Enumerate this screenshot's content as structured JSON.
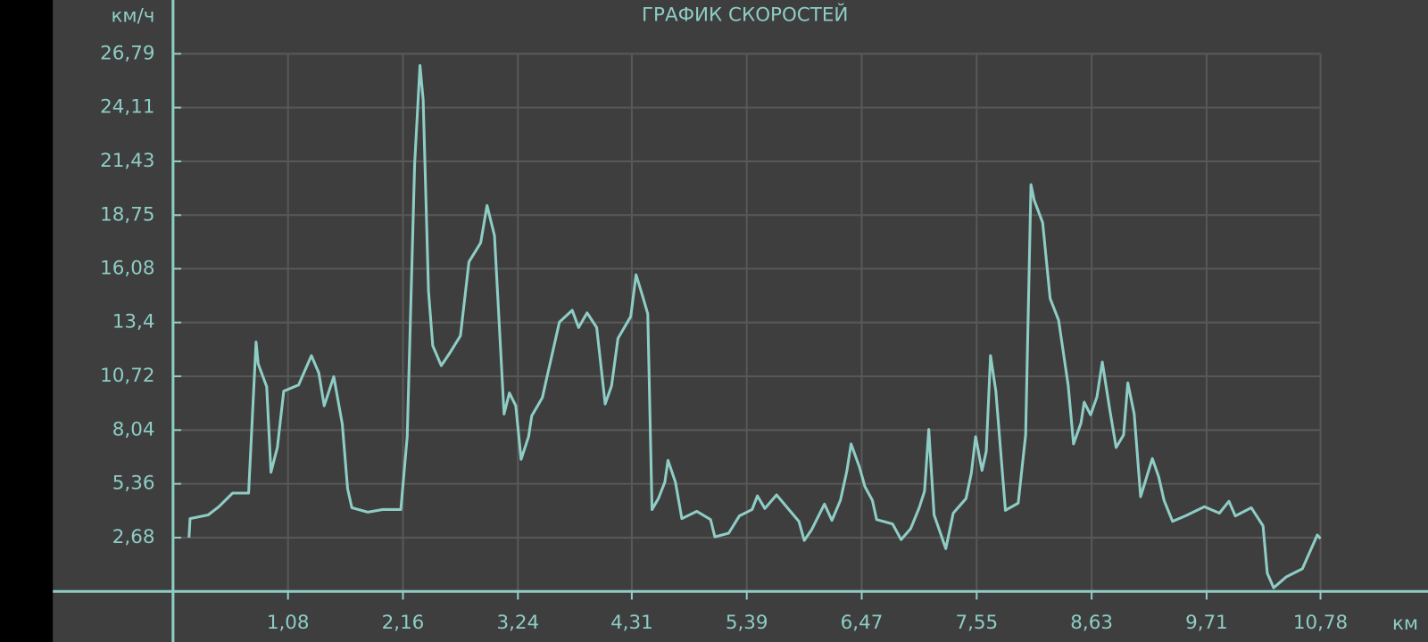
{
  "chart_data": {
    "type": "line",
    "title": "ГРАФИК СКОРОСТЕЙ",
    "y_label": "км/ч",
    "x_label": "км",
    "grid": true,
    "xlim": [
      0,
      11.79
    ],
    "ylim": [
      0,
      29.47
    ],
    "xticks": [
      {
        "value": 1.08,
        "label": "1,08"
      },
      {
        "value": 2.16,
        "label": "2,16"
      },
      {
        "value": 3.24,
        "label": "3,24"
      },
      {
        "value": 4.31,
        "label": "4,31"
      },
      {
        "value": 5.39,
        "label": "5,39"
      },
      {
        "value": 6.47,
        "label": "6,47"
      },
      {
        "value": 7.55,
        "label": "7,55"
      },
      {
        "value": 8.63,
        "label": "8,63"
      },
      {
        "value": 9.71,
        "label": "9,71"
      },
      {
        "value": 10.78,
        "label": "10,78"
      }
    ],
    "yticks": [
      {
        "value": 2.68,
        "label": "2,68"
      },
      {
        "value": 5.36,
        "label": "5,36"
      },
      {
        "value": 8.04,
        "label": "8,04"
      },
      {
        "value": 10.72,
        "label": "10,72"
      },
      {
        "value": 13.4,
        "label": "13,4"
      },
      {
        "value": 16.08,
        "label": "16,08"
      },
      {
        "value": 18.75,
        "label": "18,75"
      },
      {
        "value": 21.43,
        "label": "21,43"
      },
      {
        "value": 24.11,
        "label": "24,11"
      },
      {
        "value": 26.79,
        "label": "26,79"
      }
    ],
    "x": [
      0.15,
      0.16,
      0.33,
      0.43,
      0.56,
      0.71,
      0.78,
      0.8,
      0.88,
      0.92,
      0.98,
      1.04,
      1.18,
      1.3,
      1.37,
      1.42,
      1.51,
      1.59,
      1.64,
      1.68,
      1.83,
      1.97,
      2.14,
      2.2,
      2.27,
      2.32,
      2.35,
      2.4,
      2.44,
      2.52,
      2.6,
      2.7,
      2.78,
      2.89,
      2.95,
      3.02,
      3.11,
      3.16,
      3.22,
      3.27,
      3.34,
      3.37,
      3.47,
      3.51,
      3.63,
      3.75,
      3.81,
      3.89,
      3.98,
      4.06,
      4.12,
      4.18,
      4.3,
      4.35,
      4.41,
      4.46,
      4.5,
      4.56,
      4.62,
      4.65,
      4.72,
      4.78,
      4.92,
      5.05,
      5.09,
      5.22,
      5.32,
      5.44,
      5.49,
      5.56,
      5.67,
      5.8,
      5.88,
      5.93,
      6.0,
      6.12,
      6.19,
      6.27,
      6.33,
      6.37,
      6.45,
      6.5,
      6.57,
      6.61,
      6.76,
      6.84,
      6.93,
      7.01,
      7.06,
      7.1,
      7.15,
      7.26,
      7.33,
      7.45,
      7.5,
      7.54,
      7.6,
      7.64,
      7.68,
      7.73,
      7.82,
      7.94,
      8.01,
      8.06,
      8.09,
      8.17,
      8.24,
      8.32,
      8.41,
      8.46,
      8.53,
      8.56,
      8.62,
      8.68,
      8.73,
      8.8,
      8.86,
      8.93,
      8.97,
      9.03,
      9.09,
      9.2,
      9.26,
      9.31,
      9.39,
      9.51,
      9.69,
      9.83,
      9.92,
      9.98,
      10.13,
      10.24,
      10.28,
      10.34,
      10.46,
      10.61,
      10.75,
      10.78
    ],
    "series": [
      {
        "color": "#8ecdc5",
        "values": [
          2.68,
          3.63,
          3.81,
          4.22,
          4.9,
          4.9,
          12.43,
          11.34,
          10.2,
          5.94,
          7.17,
          9.98,
          10.29,
          11.75,
          10.88,
          9.25,
          10.7,
          8.34,
          5.12,
          4.17,
          3.95,
          4.08,
          4.08,
          7.71,
          21.31,
          26.21,
          24.49,
          14.97,
          12.24,
          11.25,
          11.88,
          12.74,
          16.42,
          17.37,
          19.23,
          17.73,
          8.84,
          9.89,
          9.25,
          6.58,
          7.71,
          8.75,
          9.66,
          10.61,
          13.42,
          14.01,
          13.15,
          13.88,
          13.15,
          9.34,
          10.25,
          12.61,
          13.7,
          15.78,
          14.74,
          13.83,
          4.08,
          4.63,
          5.44,
          6.53,
          5.44,
          3.63,
          3.99,
          3.58,
          2.72,
          2.9,
          3.76,
          4.08,
          4.76,
          4.13,
          4.81,
          3.99,
          3.49,
          2.54,
          3.08,
          4.35,
          3.54,
          4.54,
          5.99,
          7.35,
          6.17,
          5.22,
          4.54,
          3.58,
          3.36,
          2.58,
          3.13,
          4.17,
          4.99,
          8.07,
          3.81,
          2.13,
          3.9,
          4.63,
          5.9,
          7.71,
          6.03,
          6.98,
          11.75,
          9.98,
          4.04,
          4.4,
          7.8,
          20.27,
          19.5,
          18.37,
          14.6,
          13.51,
          10.25,
          7.35,
          8.39,
          9.43,
          8.8,
          9.7,
          11.43,
          9.07,
          7.17,
          7.8,
          10.39,
          8.84,
          4.72,
          6.62,
          5.71,
          4.54,
          3.49,
          3.76,
          4.22,
          3.9,
          4.49,
          3.76,
          4.17,
          3.27,
          0.91,
          0.18,
          0.73,
          1.13,
          2.81,
          2.63
        ]
      }
    ]
  }
}
